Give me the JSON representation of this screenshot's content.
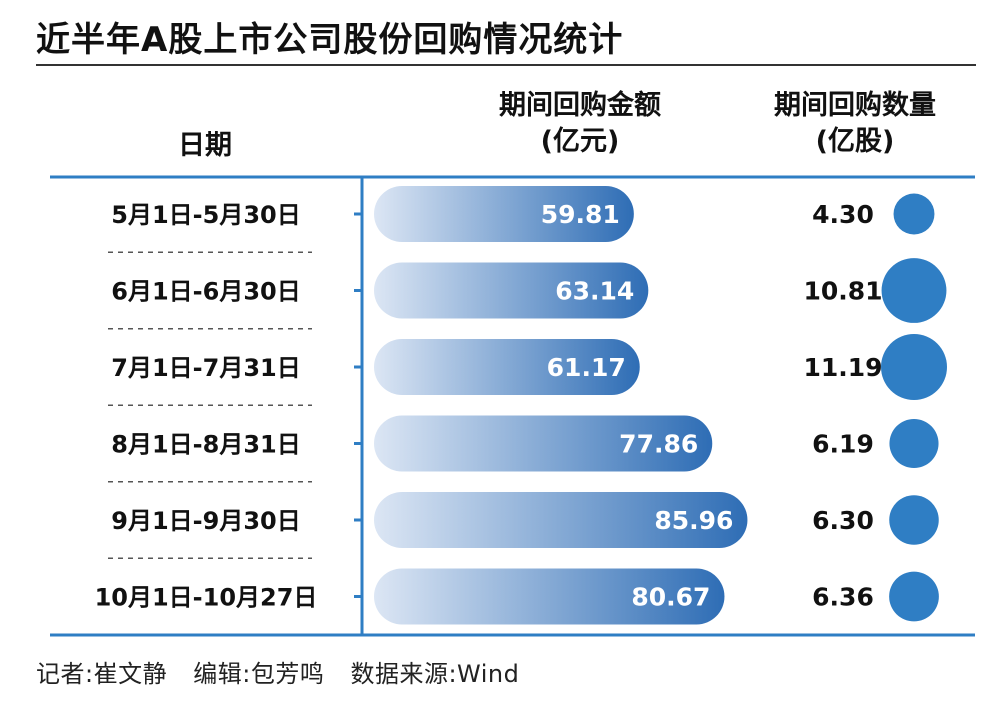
{
  "title": "近半年A股上市公司股份回购情况统计",
  "headers": {
    "date": "日期",
    "amount_line1": "期间回购金额",
    "amount_line2": "(亿元)",
    "quantity_line1": "期间回购数量",
    "quantity_line2": "(亿股)"
  },
  "footer": {
    "reporter": "记者:崔文静",
    "editor": "编辑:包芳鸣",
    "source": "数据来源:Wind"
  },
  "colors": {
    "bar_start": "#dce6f4",
    "bar_end": "#2e6db5",
    "bubble": "#2f7ec4",
    "axis_line": "#2f7ec4",
    "dash": "#555555"
  },
  "chart_data": {
    "type": "bar",
    "categories": [
      "5月1日-5月30日",
      "6月1日-6月30日",
      "7月1日-7月31日",
      "8月1日-8月31日",
      "9月1日-9月30日",
      "10月1日-10月27日"
    ],
    "series": [
      {
        "name": "期间回购金额(亿元)",
        "values": [
          59.81,
          63.14,
          61.17,
          77.86,
          85.96,
          80.67
        ],
        "labels": [
          "59.81",
          "63.14",
          "61.17",
          "77.86",
          "85.96",
          "80.67"
        ]
      },
      {
        "name": "期间回购数量(亿股)",
        "values": [
          4.3,
          10.81,
          11.19,
          6.19,
          6.3,
          6.36
        ],
        "labels": [
          "4.30",
          "10.81",
          "11.19",
          "6.19",
          "6.30",
          "6.36"
        ]
      }
    ]
  }
}
